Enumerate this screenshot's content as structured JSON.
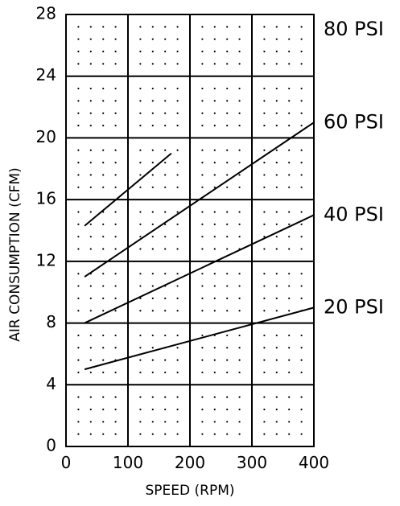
{
  "chart_data": {
    "type": "line",
    "title": "",
    "xlabel": "SPEED (RPM)",
    "ylabel": "AIR CONSUMPTION (CFM)",
    "xlim": [
      0,
      400
    ],
    "ylim": [
      0,
      28
    ],
    "xticks": [
      0,
      100,
      200,
      300,
      400
    ],
    "yticks": [
      0,
      4,
      8,
      12,
      16,
      20,
      24,
      28
    ],
    "grid": true,
    "legend": "labels at right end of lines",
    "line_color": "#000000",
    "series": [
      {
        "name": "20 PSI",
        "label_y": 9,
        "points": [
          [
            30,
            5.0
          ],
          [
            400,
            9.0
          ]
        ]
      },
      {
        "name": "40 PSI",
        "label_y": 15,
        "points": [
          [
            30,
            8.0
          ],
          [
            400,
            15.0
          ]
        ]
      },
      {
        "name": "60 PSI",
        "label_y": 21,
        "points": [
          [
            30,
            11.0
          ],
          [
            400,
            21.0
          ]
        ]
      },
      {
        "name": "80 PSI",
        "label_y": 27,
        "points": [
          [
            30,
            14.3
          ],
          [
            170,
            19.0
          ]
        ]
      }
    ]
  }
}
